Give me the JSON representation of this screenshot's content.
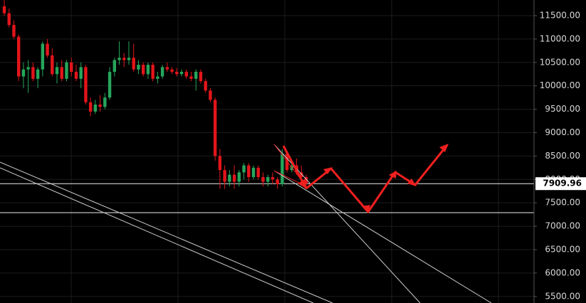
{
  "chart_data": {
    "type": "candlestick",
    "up_color": "#26a65b",
    "down_color": "#e3151a",
    "ylim": [
      5360,
      11834
    ],
    "yticks": [
      {
        "value": 5500,
        "label": "5500.00"
      },
      {
        "value": 6000,
        "label": "6000.00"
      },
      {
        "value": 6500,
        "label": "6500.00"
      },
      {
        "value": 7000,
        "label": "7000.00"
      },
      {
        "value": 7500,
        "label": "7500.00"
      },
      {
        "value": 8000,
        "label": "8000.00"
      },
      {
        "value": 8500,
        "label": "8500.00"
      },
      {
        "value": 9000,
        "label": "9000.00"
      },
      {
        "value": 9500,
        "label": "9500.00"
      },
      {
        "value": 10000,
        "label": "10000.00"
      },
      {
        "value": 10500,
        "label": "10500.00"
      },
      {
        "value": 11000,
        "label": "11000.00"
      },
      {
        "value": 11500,
        "label": "11500.00"
      }
    ],
    "grid": true,
    "last_price": 7909.96,
    "support_level": 7290,
    "open": [
      11700,
      11550,
      11300,
      11050,
      10200,
      10350,
      10400,
      10150,
      10350,
      10900,
      10650,
      10250,
      10400,
      10150,
      10500,
      10300,
      10150,
      10400,
      9650,
      9450,
      9600,
      9550,
      9750,
      10300,
      10550,
      10600,
      10550,
      10600,
      10350,
      10450,
      10250,
      10450,
      10150,
      10200,
      10400,
      10350,
      10300,
      10250,
      10300,
      10200,
      10150,
      10300,
      10100,
      9900,
      9700,
      8500,
      8200,
      7950,
      8100,
      7950,
      8150,
      8300,
      8050,
      8250,
      8050,
      7950,
      8050,
      8000,
      7900,
      8550,
      8200,
      8300,
      8150,
      8050
    ],
    "high": [
      11834,
      11650,
      11400,
      11100,
      10500,
      10550,
      10500,
      10400,
      10950,
      11000,
      10800,
      10500,
      10550,
      10550,
      10600,
      10450,
      10500,
      10450,
      9750,
      9700,
      9800,
      9850,
      10400,
      10600,
      10950,
      10700,
      10950,
      10900,
      10550,
      10500,
      10500,
      10500,
      10300,
      10450,
      10500,
      10400,
      10380,
      10350,
      10350,
      10300,
      10350,
      10350,
      10150,
      9950,
      9750,
      8650,
      8300,
      8200,
      8300,
      8200,
      8350,
      8350,
      8300,
      8300,
      8150,
      8100,
      8150,
      8050,
      8650,
      8600,
      8400,
      8450,
      8300,
      8100
    ],
    "low": [
      11500,
      11250,
      11000,
      10100,
      9950,
      9850,
      10100,
      9950,
      10200,
      10600,
      10200,
      10050,
      10100,
      10100,
      10200,
      10100,
      9950,
      9600,
      9350,
      9400,
      9450,
      9500,
      9700,
      10200,
      10450,
      10400,
      10450,
      10300,
      10250,
      10200,
      10150,
      10100,
      10050,
      10150,
      10300,
      10250,
      10200,
      10200,
      10150,
      10100,
      9900,
      10050,
      9850,
      9650,
      8400,
      7800,
      7800,
      7850,
      7800,
      7850,
      8000,
      7950,
      8000,
      8000,
      7850,
      7850,
      7900,
      7800,
      7850,
      8150,
      8150,
      8100,
      8000,
      7850
    ],
    "close": [
      11550,
      11300,
      11050,
      10200,
      10350,
      10400,
      10150,
      10350,
      10900,
      10650,
      10250,
      10400,
      10150,
      10500,
      10300,
      10150,
      10400,
      9650,
      9450,
      9600,
      9550,
      9750,
      10300,
      10550,
      10600,
      10550,
      10600,
      10350,
      10450,
      10250,
      10450,
      10150,
      10200,
      10400,
      10350,
      10300,
      10250,
      10300,
      10200,
      10150,
      10300,
      10100,
      9900,
      9700,
      8500,
      8200,
      7950,
      8100,
      7950,
      8150,
      8300,
      8050,
      8250,
      8050,
      7950,
      8050,
      8000,
      7900,
      8550,
      8200,
      8300,
      8150,
      8050,
      7910
    ]
  }
}
